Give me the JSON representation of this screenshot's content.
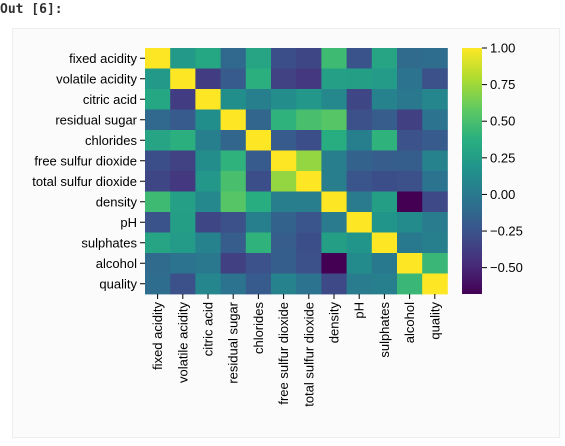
{
  "cell_label": "Out [6]:",
  "chart_data": {
    "type": "heatmap",
    "title": "",
    "xlabel": "",
    "ylabel": "",
    "colormap": "viridis",
    "vmin": -0.68,
    "vmax": 1.0,
    "labels": [
      "fixed acidity",
      "volatile acidity",
      "citric acid",
      "residual sugar",
      "chlorides",
      "free sulfur dioxide",
      "total sulfur dioxide",
      "density",
      "pH",
      "sulphates",
      "alcohol",
      "quality"
    ],
    "matrix": [
      [
        1.0,
        0.22,
        0.32,
        -0.11,
        0.3,
        -0.28,
        -0.33,
        0.46,
        -0.25,
        0.3,
        -0.1,
        -0.08
      ],
      [
        0.22,
        1.0,
        -0.38,
        -0.2,
        0.38,
        -0.35,
        -0.41,
        0.27,
        0.26,
        0.23,
        -0.04,
        -0.27
      ],
      [
        0.32,
        -0.38,
        1.0,
        0.14,
        0.04,
        0.13,
        0.2,
        0.1,
        -0.33,
        0.06,
        -0.01,
        0.09
      ],
      [
        -0.11,
        -0.2,
        0.14,
        1.0,
        -0.13,
        0.4,
        0.5,
        0.55,
        -0.27,
        -0.19,
        -0.36,
        -0.04
      ],
      [
        0.3,
        0.38,
        0.04,
        -0.13,
        1.0,
        -0.2,
        -0.28,
        0.36,
        0.04,
        0.4,
        -0.26,
        -0.2
      ],
      [
        -0.28,
        -0.35,
        0.13,
        0.4,
        -0.2,
        1.0,
        0.72,
        0.03,
        -0.15,
        -0.19,
        -0.18,
        0.06
      ],
      [
        -0.33,
        -0.41,
        0.2,
        0.5,
        -0.28,
        0.72,
        1.0,
        0.03,
        -0.24,
        -0.28,
        -0.27,
        -0.04
      ],
      [
        0.46,
        0.27,
        0.1,
        0.55,
        0.36,
        0.03,
        0.03,
        1.0,
        0.01,
        0.26,
        -0.69,
        -0.31
      ],
      [
        -0.25,
        0.26,
        -0.33,
        -0.27,
        0.04,
        -0.15,
        -0.24,
        0.01,
        1.0,
        0.19,
        0.12,
        0.02
      ],
      [
        0.3,
        0.23,
        0.06,
        -0.19,
        0.4,
        -0.19,
        -0.28,
        0.26,
        0.19,
        1.0,
        -0.0,
        0.04
      ],
      [
        -0.1,
        -0.04,
        -0.01,
        -0.36,
        -0.26,
        -0.18,
        -0.27,
        -0.69,
        0.12,
        -0.0,
        1.0,
        0.44
      ],
      [
        -0.08,
        -0.27,
        0.09,
        -0.04,
        -0.2,
        0.06,
        -0.04,
        -0.31,
        0.02,
        0.04,
        0.44,
        1.0
      ]
    ],
    "colorbar_ticks": [
      "1.00",
      "0.75",
      "0.50",
      "0.25",
      "0.00",
      "−0.25",
      "−0.50"
    ],
    "colorbar_tick_values": [
      1.0,
      0.75,
      0.5,
      0.25,
      0.0,
      -0.25,
      -0.5
    ]
  }
}
